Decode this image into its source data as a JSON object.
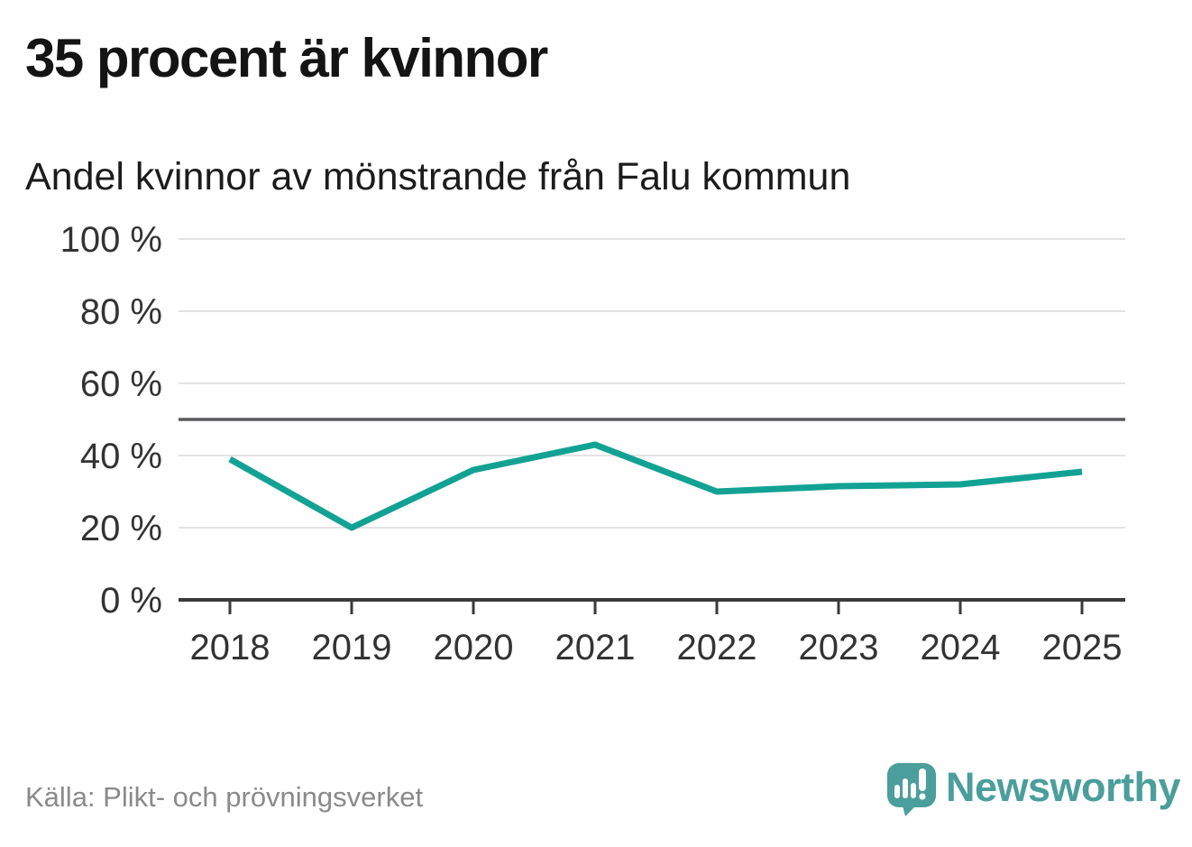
{
  "chart_data": {
    "type": "line",
    "title": "35 procent är kvinnor",
    "subtitle": "Andel kvinnor av mönstrande från Falu kommun",
    "x": [
      "2018",
      "2019",
      "2020",
      "2021",
      "2022",
      "2023",
      "2024",
      "2025"
    ],
    "series": [
      {
        "name": "Andel kvinnor av mönstrande",
        "color": "#12a294",
        "values": [
          39,
          20,
          36,
          43,
          30,
          31.5,
          32,
          35.5
        ]
      }
    ],
    "xlabel": "",
    "ylabel": "",
    "ylim": [
      0,
      100
    ],
    "yticks": [
      0,
      20,
      40,
      60,
      80,
      100
    ],
    "ytick_labels": [
      "0 %",
      "20 %",
      "40 %",
      "60 %",
      "80 %",
      "100 %"
    ],
    "reference_line_y": 50,
    "grid": true,
    "legend": "none"
  },
  "footer": {
    "source": "Källa: Plikt- och prövningsverket",
    "brand": "Newsworthy"
  },
  "colors": {
    "line": "#12a294",
    "brand_teal": "#4a9e9b",
    "gridline": "#e3e3e3",
    "reference_line": "#58595b",
    "axis": "#3a3a3a",
    "tick_label": "#333333",
    "title": "#141414",
    "source_text": "#8a8a8a"
  }
}
